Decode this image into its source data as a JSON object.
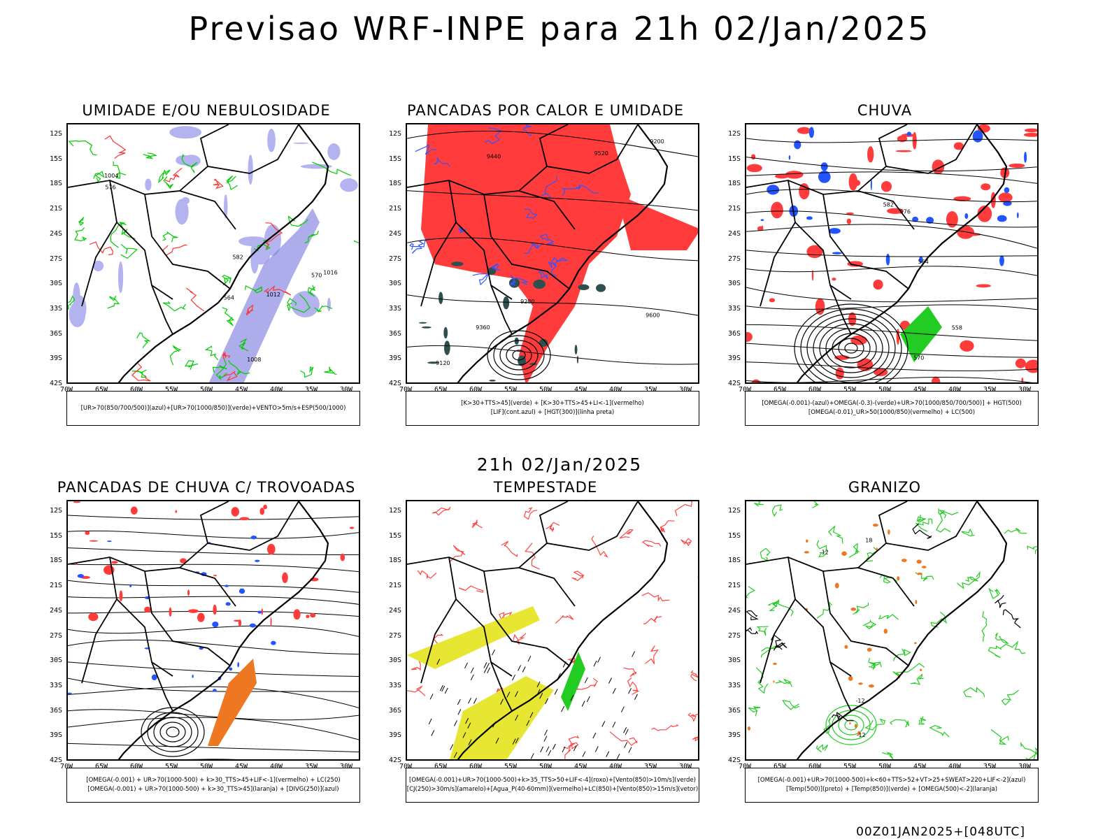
{
  "title": "Previsao WRF-INPE  para 21h 02/Jan/2025",
  "subtitle": "21h 02/Jan/2025",
  "footer": "00Z01JAN2025+[048UTC]",
  "lat_labels": [
    "12S",
    "15S",
    "18S",
    "21S",
    "24S",
    "27S",
    "30S",
    "33S",
    "36S",
    "39S",
    "42S"
  ],
  "lon_labels": [
    "70W",
    "65W",
    "60W",
    "55W",
    "50W",
    "45W",
    "40W",
    "35W",
    "30W"
  ],
  "panels": [
    {
      "title": "UMIDADE E/OU NEBULOSIDADE",
      "legend": [
        "[UR>70(850/700/500)](azul)+[UR>70(1000/850)](verde)+VENTO>5m/s+ESP(500/1000)"
      ],
      "contour_labels": [
        "1008",
        "1012",
        "1016",
        "1004",
        "576",
        "570",
        "564",
        "582"
      ],
      "colors": {
        "fill": "#b3b3f0",
        "line1": "#00cc00",
        "line2": "#ff3333"
      }
    },
    {
      "title": "PANCADAS POR CALOR E UMIDADE",
      "legend": [
        "[K>30+TTS>45](verde) + [K>30+TTS>45+LI<-1](vermelho)",
        "[LIF](cont.azul) + [HGT(300)](linha preta)"
      ],
      "contour_labels": [
        "9600",
        "9520",
        "9440",
        "9360",
        "9280",
        "9200",
        "9120"
      ],
      "colors": {
        "fill": "#ff3b3b",
        "fill2": "#2f4f4f",
        "line1": "#3355ff",
        "line2": "#000000"
      }
    },
    {
      "title": "CHUVA",
      "legend": [
        "[OMEGA(-0.001)-(azul)+OMEGA(-0.3)-(verde)+UR>70(1000/850/700/500)] + HGT(500)",
        "[OMEGA(-0.01)_UR>50(1000/850)(vermelho) + LC(500)"
      ],
      "contour_labels": [
        "582",
        "576",
        "570",
        "564",
        "558"
      ],
      "colors": {
        "fill": "#ff3b3b",
        "fill2": "#2255ff",
        "fill3": "#22cc22",
        "line1": "#000000"
      }
    },
    {
      "title": "PANCADAS DE CHUVA C/ TROVOADAS",
      "legend": [
        "[OMEGA(-0.001) + UR>70(1000-500) + k>30_TTS>45+LIF<-1](vermelho) + LC(250)",
        "[OMEGA(-0.001) + UR>70(1000-500) + k>30_TTS>45](laranja) + [DIVG(250)](azul)"
      ],
      "contour_labels": [],
      "colors": {
        "fill": "#ff3b3b",
        "fill2": "#ee7722",
        "fill3": "#2255ff",
        "line1": "#000000"
      }
    },
    {
      "title": "TEMPESTADE",
      "legend": [
        "[OMEGA(-0.001)+UR>70(1000-500)+k>35_TTS>50+LIF<-4](roxo)+[Vento(850)>10m/s](verde)",
        "[CJ(250)>30m/s](amarelo)+[Agua_P(40-60mm)](vermelho)+LC(850)+[Vento(850)>15m/s](vetor)"
      ],
      "contour_labels": [],
      "colors": {
        "fill": "#e6e633",
        "fill2": "#22cc22",
        "line1": "#ff4444",
        "line2": "#000000"
      }
    },
    {
      "title": "GRANIZO",
      "legend": [
        "[OMEGA(-0.001)+UR>70(1000-500)+k<60+TTS>52+VT>25+SWEAT>220+LIF<-2](azul)",
        "[Temp(500)](preto) + [Temp(850)](verde) + [OMEGA(500)<-2](laranja)"
      ],
      "contour_labels": [
        "-12",
        "-12",
        "-12",
        "18"
      ],
      "colors": {
        "fill": "#ee7722",
        "line1": "#22cc22",
        "line2": "#000000"
      }
    }
  ]
}
